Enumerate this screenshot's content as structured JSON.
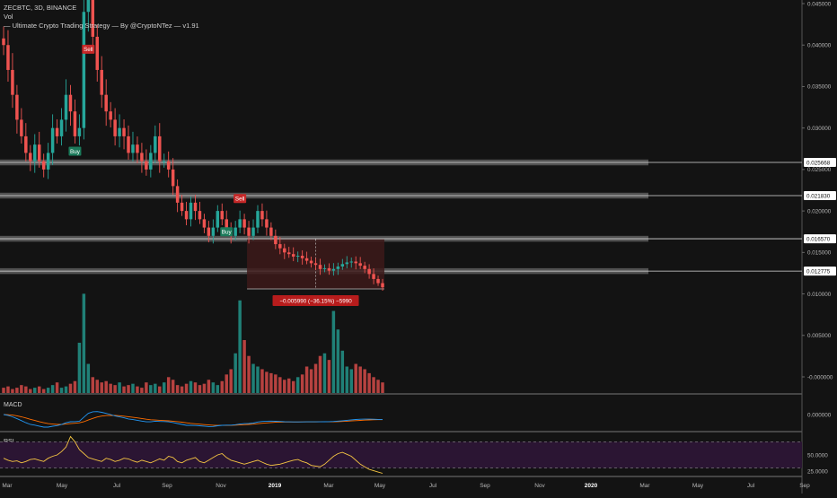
{
  "header": {
    "symbol_line": "ZECBTC, 3D, BINANCE",
    "vol_label": "Vol",
    "strategy_label": "— Ultimate Crypto Trading Strategy — By @CryptoNTez — v1.91"
  },
  "colors": {
    "background": "#131313",
    "bull": "#26a69a",
    "bear": "#ef5350",
    "zone": "#5e5e5e",
    "macd_line": "#2196f3",
    "signal_line": "#ff6d00",
    "rsi_line": "#f5c542",
    "rsi_band": "#2b1533",
    "measure_box": "#3d1a1a",
    "measure_label": "#b71c1c"
  },
  "chart_data": [
    {
      "type": "candlestick",
      "title": "ZECBTC, 3D, BINANCE",
      "ylim": [
        0.0,
        0.045
      ],
      "y_ticks": [
        "0.045000",
        "0.040000",
        "0.035000",
        "0.030000",
        "0.025000",
        "0.020000",
        "0.015000",
        "0.010000",
        "0.005000",
        "-0.000000"
      ],
      "x_ticks": [
        "Mar",
        "May",
        "Jul",
        "Sep",
        "Nov",
        "2019",
        "Mar",
        "May",
        "Jul",
        "Sep",
        "Nov",
        "2020",
        "Mar",
        "May",
        "Jul",
        "Sep"
      ],
      "close_path": [
        0.04,
        0.037,
        0.034,
        0.031,
        0.029,
        0.027,
        0.026,
        0.028,
        0.026,
        0.025,
        0.027,
        0.03,
        0.029,
        0.031,
        0.034,
        0.032,
        0.029,
        0.03,
        0.044,
        0.046,
        0.041,
        0.037,
        0.034,
        0.032,
        0.031,
        0.029,
        0.03,
        0.029,
        0.027,
        0.028,
        0.027,
        0.026,
        0.025,
        0.027,
        0.029,
        0.026,
        0.026,
        0.025,
        0.023,
        0.021,
        0.02,
        0.019,
        0.021,
        0.02,
        0.019,
        0.018,
        0.017,
        0.018,
        0.02,
        0.019,
        0.018,
        0.017,
        0.018,
        0.019,
        0.018,
        0.017,
        0.018,
        0.02,
        0.019,
        0.018,
        0.017,
        0.016,
        0.0155,
        0.015,
        0.0148,
        0.0145,
        0.0146,
        0.0143,
        0.014,
        0.0137,
        0.0135,
        0.013,
        0.0131,
        0.0128,
        0.013,
        0.0133,
        0.0136,
        0.0138,
        0.0139,
        0.0137,
        0.0134,
        0.013,
        0.0124,
        0.0118,
        0.0113,
        0.0108
      ],
      "zones": [
        {
          "top": 0.0262,
          "bottom": 0.0255,
          "label": "0.025668"
        },
        {
          "top": 0.0222,
          "bottom": 0.0215,
          "label": "0.021830"
        },
        {
          "top": 0.017,
          "bottom": 0.0163,
          "label": "0.016570"
        },
        {
          "top": 0.0131,
          "bottom": 0.0124,
          "label": "0.012775"
        }
      ],
      "signals": [
        {
          "type": "Sell",
          "index": 19,
          "price": 0.0395
        },
        {
          "type": "Buy",
          "index": 16,
          "price": 0.0272
        },
        {
          "type": "Sell",
          "index": 53,
          "price": 0.0215
        },
        {
          "type": "Buy",
          "index": 50,
          "price": 0.0175
        }
      ],
      "measurement": {
        "label": "−0.005990 (−36.15%) −5990",
        "start_index": 55,
        "end_index": 85,
        "from_price": 0.0166,
        "to_price": 0.0106
      },
      "volume_values": [
        4,
        5,
        3,
        4,
        6,
        5,
        3,
        4,
        5,
        3,
        4,
        6,
        8,
        4,
        5,
        7,
        9,
        38,
        75,
        22,
        12,
        10,
        8,
        9,
        7,
        6,
        8,
        5,
        6,
        7,
        5,
        4,
        8,
        6,
        7,
        5,
        8,
        12,
        10,
        6,
        5,
        7,
        9,
        8,
        6,
        7,
        10,
        8,
        6,
        9,
        14,
        18,
        30,
        70,
        40,
        28,
        22,
        20,
        18,
        16,
        15,
        14,
        12,
        10,
        11,
        9,
        12,
        14,
        20,
        18,
        22,
        28,
        30,
        25,
        62,
        48,
        32,
        20,
        18,
        22,
        20,
        18,
        15,
        12,
        10,
        8
      ]
    },
    {
      "type": "line",
      "title": "MACD",
      "y_ticks": [
        "0.000000"
      ],
      "series": []
    },
    {
      "type": "line",
      "title": "RSI",
      "ylim": [
        20,
        80
      ],
      "y_ticks": [
        "50.0000",
        "25.0000"
      ],
      "values": [
        45,
        42,
        40,
        41,
        38,
        40,
        43,
        44,
        42,
        40,
        45,
        48,
        50,
        55,
        62,
        78,
        70,
        58,
        52,
        46,
        44,
        42,
        40,
        45,
        43,
        40,
        42,
        45,
        44,
        41,
        39,
        42,
        40,
        38,
        41,
        44,
        42,
        48,
        46,
        40,
        38,
        42,
        44,
        46,
        40,
        38,
        42,
        46,
        50,
        52,
        46,
        42,
        40,
        38,
        36,
        38,
        40,
        42,
        39,
        36,
        34,
        35,
        36,
        38,
        40,
        42,
        43,
        40,
        38,
        34,
        33,
        32,
        36,
        42,
        48,
        52,
        54,
        51,
        48,
        42,
        36,
        32,
        28,
        26,
        24,
        22
      ]
    }
  ]
}
